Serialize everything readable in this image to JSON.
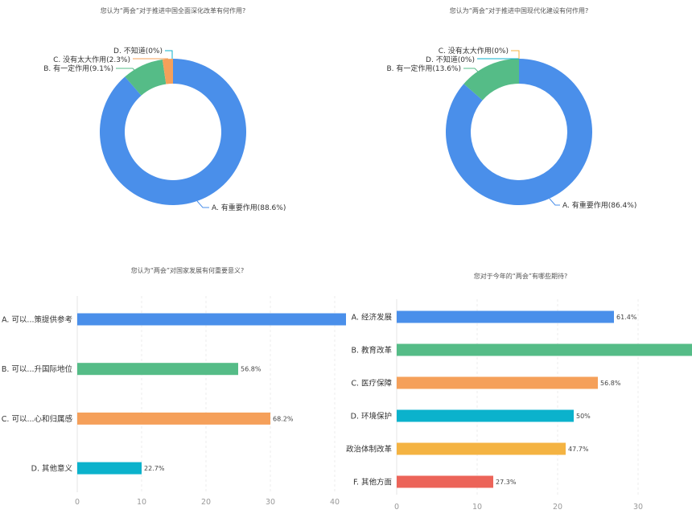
{
  "colors": {
    "blue": "#4a8fea",
    "green": "#55bc87",
    "orange": "#f5a05a",
    "cyan": "#0bb2cc",
    "yellow": "#f4b342",
    "red": "#ec6459"
  },
  "chart_data": [
    {
      "type": "pie",
      "title": "您认为“两会”对于推进中国全面深化改革有何作用?",
      "slices": [
        {
          "label": "A. 有重要作用(88.6%)",
          "value": 88.6,
          "color": "#4a8fea"
        },
        {
          "label": "B. 有一定作用(9.1%)",
          "value": 9.1,
          "color": "#55bc87"
        },
        {
          "label": "C. 没有太大作用(2.3%)",
          "value": 2.3,
          "color": "#f5a05a"
        },
        {
          "label": "D. 不知道(0%)",
          "value": 0,
          "color": "#0bb2cc"
        }
      ]
    },
    {
      "type": "pie",
      "title": "您认为“两会”对于推进中国现代化建设有何作用?",
      "slices": [
        {
          "label": "A. 有重要作用(86.4%)",
          "value": 86.4,
          "color": "#4a8fea"
        },
        {
          "label": "B. 有一定作用(13.6%)",
          "value": 13.6,
          "color": "#55bc87"
        },
        {
          "label": "D. 不知道(0%)",
          "value": 0,
          "color": "#0bb2cc"
        },
        {
          "label": "C. 没有太大作用(0%)",
          "value": 0,
          "color": "#f4b342"
        }
      ]
    },
    {
      "type": "bar",
      "orientation": "horizontal",
      "title": "您认为“两会”对国家发展有何重要意义?",
      "categories": [
        "A. 可以...策提供参考",
        "B. 可以...升国际地位",
        "C. 可以...心和归属感",
        "D. 其他意义"
      ],
      "values": [
        42,
        25,
        30,
        10
      ],
      "labels": [
        "",
        "56.8%",
        "68.2%",
        "22.7%"
      ],
      "colors": [
        "#4a8fea",
        "#55bc87",
        "#f5a05a",
        "#0bb2cc"
      ],
      "xticks": [
        "0",
        "10",
        "20",
        "30",
        "40"
      ],
      "xlim": [
        0,
        42
      ]
    },
    {
      "type": "bar",
      "orientation": "horizontal",
      "title": "您对于今年的“两会”有哪些期待?",
      "categories": [
        "A. 经济发展",
        "B. 教育改革",
        "C. 医疗保障",
        "D. 环境保护",
        "政治体制改革",
        "F. 其他方面"
      ],
      "values": [
        27,
        38,
        25,
        22,
        21,
        12
      ],
      "labels": [
        "61.4%",
        "",
        "56.8%",
        "50%",
        "47.7%",
        "27.3%"
      ],
      "colors": [
        "#4a8fea",
        "#55bc87",
        "#f5a05a",
        "#0bb2cc",
        "#f4b342",
        "#ec6459"
      ],
      "xticks": [
        "0",
        "10",
        "20",
        "30",
        "3"
      ],
      "xlim": [
        0,
        36.7
      ]
    }
  ]
}
